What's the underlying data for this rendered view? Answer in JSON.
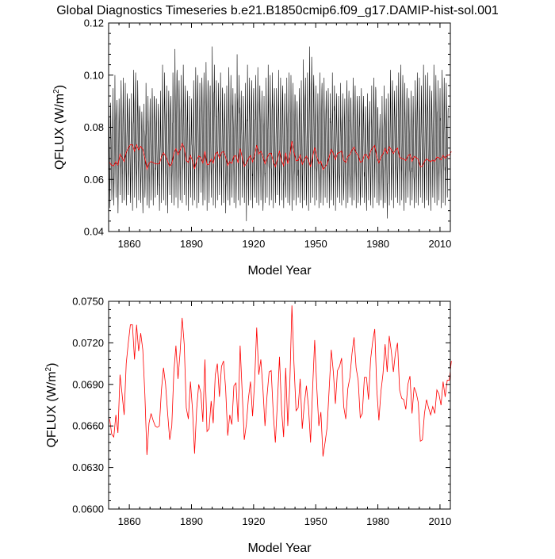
{
  "figure_title": "Global Diagnostics Timeseries b.e21.B1850cmip6.f09_g17.DAMIP-hist-sol.001",
  "colors": {
    "monthly": "#000000",
    "annual": "#ff0000",
    "axes": "#000000",
    "background": "#ffffff"
  },
  "chart_data": [
    {
      "type": "line",
      "title": "",
      "xlabel": "Model Year",
      "ylabel": "QFLUX (W/m²)",
      "ylabel_main": "QFLUX (W/m",
      "ylabel_sup": "2",
      "ylabel_close": ")",
      "xlim": [
        1850,
        2015
      ],
      "ylim": [
        0.04,
        0.12
      ],
      "xticks": [
        1860,
        1890,
        1920,
        1950,
        1980,
        2010
      ],
      "xtick_labels": [
        "1860",
        "1890",
        "1920",
        "1950",
        "1980",
        "2010"
      ],
      "yticks": [
        0.04,
        0.06,
        0.08,
        0.1,
        0.12
      ],
      "ytick_labels": [
        "0.04",
        "0.06",
        "0.08",
        "0.10",
        "0.12"
      ],
      "grid": false,
      "legend": "none",
      "series": [
        {
          "color": "#000000",
          "description_of_values": "monthly global mean, seasonal cycle approx. 0.050-0.102",
          "x_start": 1850.04,
          "x_step": 0.0833333,
          "values_annual_peaks": [
            0.094,
            0.087,
            0.095,
            0.1,
            0.088,
            0.091,
            0.098,
            0.099,
            0.097,
            0.093,
            0.091,
            0.093,
            0.102,
            0.101,
            0.098,
            0.087,
            0.086,
            0.089,
            0.097,
            0.092,
            0.091,
            0.095,
            0.092,
            0.091,
            0.089,
            0.094,
            0.104,
            0.101,
            0.096,
            0.094,
            0.092,
            0.101,
            0.11,
            0.102,
            0.098,
            0.1,
            0.104,
            0.096,
            0.094,
            0.092,
            0.091,
            0.098,
            0.103,
            0.1,
            0.097,
            0.099,
            0.101,
            0.105,
            0.098,
            0.096,
            0.111,
            0.104,
            0.098,
            0.097,
            0.101,
            0.094,
            0.093,
            0.096,
            0.103,
            0.1,
            0.095,
            0.093,
            0.108,
            0.1,
            0.094,
            0.092,
            0.097,
            0.104,
            0.099,
            0.098,
            0.095,
            0.1,
            0.103,
            0.096,
            0.094,
            0.092,
            0.099,
            0.104,
            0.1,
            0.101,
            0.095,
            0.095,
            0.102,
            0.099,
            0.096,
            0.093,
            0.099,
            0.101,
            0.1,
            0.097,
            0.092,
            0.09,
            0.095,
            0.098,
            0.106,
            0.099,
            0.101,
            0.111,
            0.107,
            0.1,
            0.096,
            0.093,
            0.101,
            0.097,
            0.099,
            0.094,
            0.095,
            0.093,
            0.101,
            0.096,
            0.093,
            0.092,
            0.097,
            0.093,
            0.091,
            0.098,
            0.094,
            0.09,
            0.099,
            0.096,
            0.092,
            0.092,
            0.095,
            0.092,
            0.088,
            0.093,
            0.09,
            0.096,
            0.099,
            0.094,
            0.087,
            0.085,
            0.092,
            0.096,
            0.091,
            0.093,
            0.102,
            0.098,
            0.094,
            0.096,
            0.101,
            0.104,
            0.1,
            0.097,
            0.095,
            0.091,
            0.094,
            0.092,
            0.098,
            0.101,
            0.099,
            0.096,
            0.104,
            0.1,
            0.101,
            0.096,
            0.094,
            0.104,
            0.1,
            0.098,
            0.095,
            0.102,
            0.099,
            0.097
          ],
          "values_annual_troughs": [
            0.049,
            0.052,
            0.05,
            0.053,
            0.047,
            0.054,
            0.051,
            0.052,
            0.05,
            0.054,
            0.051,
            0.048,
            0.053,
            0.049,
            0.052,
            0.051,
            0.047,
            0.053,
            0.05,
            0.049,
            0.052,
            0.05,
            0.053,
            0.054,
            0.048,
            0.051,
            0.052,
            0.05,
            0.047,
            0.054,
            0.051,
            0.05,
            0.053,
            0.049,
            0.052,
            0.051,
            0.054,
            0.05,
            0.048,
            0.053,
            0.05,
            0.052,
            0.049,
            0.051,
            0.055,
            0.05,
            0.052,
            0.048,
            0.051,
            0.053,
            0.05,
            0.049,
            0.052,
            0.054,
            0.05,
            0.051,
            0.047,
            0.052,
            0.05,
            0.053,
            0.051,
            0.049,
            0.052,
            0.05,
            0.053,
            0.051,
            0.044,
            0.05,
            0.052,
            0.049,
            0.053,
            0.051,
            0.05,
            0.052,
            0.048,
            0.051,
            0.053,
            0.05,
            0.052,
            0.049,
            0.051,
            0.054,
            0.05,
            0.052,
            0.049,
            0.053,
            0.051,
            0.05,
            0.048,
            0.052,
            0.05,
            0.053,
            0.051,
            0.049,
            0.052,
            0.05,
            0.048,
            0.051,
            0.053,
            0.05,
            0.052,
            0.049,
            0.051,
            0.05,
            0.053,
            0.051,
            0.049,
            0.052,
            0.05,
            0.048,
            0.053,
            0.051,
            0.05,
            0.052,
            0.049,
            0.051,
            0.053,
            0.05,
            0.052,
            0.049,
            0.051,
            0.05,
            0.053,
            0.051,
            0.048,
            0.052,
            0.05,
            0.049,
            0.053,
            0.051,
            0.05,
            0.052,
            0.049,
            0.051,
            0.045,
            0.05,
            0.052,
            0.049,
            0.053,
            0.051,
            0.05,
            0.052,
            0.048,
            0.051,
            0.053,
            0.05,
            0.052,
            0.049,
            0.051,
            0.05,
            0.053,
            0.051,
            0.049,
            0.052,
            0.05,
            0.048,
            0.053,
            0.051,
            0.05,
            0.052,
            0.049,
            0.051,
            0.05,
            0.053,
            0.051
          ]
        },
        {
          "color": "#ff0000",
          "description_of_values": "annual mean",
          "x_start": 1850.5,
          "x_step": 1,
          "values": [
            0.0665,
            0.0654,
            0.0652,
            0.0668,
            0.0655,
            0.0697,
            0.0683,
            0.0668,
            0.0705,
            0.072,
            0.0733,
            0.0733,
            0.0708,
            0.0733,
            0.0714,
            0.0727,
            0.0715,
            0.0683,
            0.0639,
            0.0662,
            0.0669,
            0.0664,
            0.066,
            0.0659,
            0.066,
            0.0686,
            0.0702,
            0.069,
            0.0669,
            0.065,
            0.066,
            0.0699,
            0.0718,
            0.0694,
            0.0713,
            0.0738,
            0.0719,
            0.0673,
            0.0665,
            0.0692,
            0.0672,
            0.064,
            0.0672,
            0.069,
            0.0684,
            0.0663,
            0.0708,
            0.0656,
            0.0658,
            0.0678,
            0.0662,
            0.0697,
            0.0705,
            0.0681,
            0.0703,
            0.0707,
            0.0687,
            0.0653,
            0.0668,
            0.0661,
            0.0689,
            0.0691,
            0.0663,
            0.0718,
            0.0684,
            0.065,
            0.0661,
            0.068,
            0.0692,
            0.0667,
            0.0692,
            0.0731,
            0.0697,
            0.0708,
            0.0687,
            0.066,
            0.0682,
            0.0699,
            0.07,
            0.0669,
            0.0648,
            0.0677,
            0.071,
            0.0672,
            0.0652,
            0.0702,
            0.066,
            0.0691,
            0.0747,
            0.0705,
            0.0671,
            0.0673,
            0.0694,
            0.0658,
            0.0676,
            0.0689,
            0.0674,
            0.0648,
            0.0687,
            0.0722,
            0.0688,
            0.066,
            0.067,
            0.0638,
            0.0648,
            0.0659,
            0.0687,
            0.0715,
            0.0699,
            0.0676,
            0.07,
            0.0703,
            0.0709,
            0.0674,
            0.0665,
            0.0687,
            0.0695,
            0.0712,
            0.0724,
            0.0702,
            0.0693,
            0.0666,
            0.0669,
            0.0695,
            0.0695,
            0.0679,
            0.0708,
            0.0721,
            0.073,
            0.0686,
            0.0664,
            0.0685,
            0.0698,
            0.0719,
            0.0699,
            0.0725,
            0.0714,
            0.0699,
            0.0713,
            0.072,
            0.0686,
            0.068,
            0.0679,
            0.0672,
            0.069,
            0.0696,
            0.0669,
            0.0688,
            0.0684,
            0.0677,
            0.0649,
            0.065,
            0.0669,
            0.0679,
            0.0673,
            0.0668,
            0.0674,
            0.0669,
            0.0686,
            0.0683,
            0.0675,
            0.0692,
            0.0681,
            0.0693,
            0.0693,
            0.0707
          ]
        }
      ]
    },
    {
      "type": "line",
      "title": "",
      "xlabel": "Model Year",
      "ylabel": "QFLUX (W/m²)",
      "ylabel_main": "QFLUX (W/m",
      "ylabel_sup": "2",
      "ylabel_close": ")",
      "xlim": [
        1850,
        2015
      ],
      "ylim": [
        0.06,
        0.075
      ],
      "xticks": [
        1860,
        1890,
        1920,
        1950,
        1980,
        2010
      ],
      "xtick_labels": [
        "1860",
        "1890",
        "1920",
        "1950",
        "1980",
        "2010"
      ],
      "yticks": [
        0.06,
        0.063,
        0.066,
        0.069,
        0.072,
        0.075
      ],
      "ytick_labels": [
        "0.0600",
        "0.0630",
        "0.0660",
        "0.0690",
        "0.0720",
        "0.0750"
      ],
      "grid": false,
      "legend": "none",
      "series": [
        {
          "color": "#ff0000",
          "description_of_values": "annual mean",
          "x_start": 1850.5,
          "x_step": 1,
          "values": [
            0.0665,
            0.0654,
            0.0652,
            0.0668,
            0.0655,
            0.0697,
            0.0683,
            0.0668,
            0.0705,
            0.072,
            0.0733,
            0.0733,
            0.0708,
            0.0733,
            0.0714,
            0.0727,
            0.0715,
            0.0683,
            0.0639,
            0.0662,
            0.0669,
            0.0664,
            0.066,
            0.0659,
            0.066,
            0.0686,
            0.0702,
            0.069,
            0.0669,
            0.065,
            0.066,
            0.0699,
            0.0718,
            0.0694,
            0.0713,
            0.0738,
            0.0719,
            0.0673,
            0.0665,
            0.0692,
            0.0672,
            0.064,
            0.0672,
            0.069,
            0.0684,
            0.0663,
            0.0708,
            0.0656,
            0.0658,
            0.0678,
            0.0662,
            0.0697,
            0.0705,
            0.0681,
            0.0703,
            0.0707,
            0.0687,
            0.0653,
            0.0668,
            0.0661,
            0.0689,
            0.0691,
            0.0663,
            0.0718,
            0.0684,
            0.065,
            0.0661,
            0.068,
            0.0692,
            0.0667,
            0.0692,
            0.0731,
            0.0697,
            0.0708,
            0.0687,
            0.066,
            0.0682,
            0.0699,
            0.07,
            0.0669,
            0.0648,
            0.0677,
            0.071,
            0.0672,
            0.0652,
            0.0702,
            0.066,
            0.0691,
            0.0747,
            0.0705,
            0.0671,
            0.0673,
            0.0694,
            0.0658,
            0.0676,
            0.0689,
            0.0674,
            0.0648,
            0.0687,
            0.0722,
            0.0688,
            0.066,
            0.067,
            0.0638,
            0.0648,
            0.0659,
            0.0687,
            0.0715,
            0.0699,
            0.0676,
            0.07,
            0.0703,
            0.0709,
            0.0674,
            0.0665,
            0.0687,
            0.0695,
            0.0712,
            0.0724,
            0.0702,
            0.0693,
            0.0666,
            0.0669,
            0.0695,
            0.0695,
            0.0679,
            0.0708,
            0.0721,
            0.073,
            0.0686,
            0.0664,
            0.0685,
            0.0698,
            0.0719,
            0.0699,
            0.0725,
            0.0714,
            0.0699,
            0.0713,
            0.072,
            0.0686,
            0.068,
            0.0679,
            0.0672,
            0.069,
            0.0696,
            0.0669,
            0.0688,
            0.0684,
            0.0677,
            0.0649,
            0.065,
            0.0669,
            0.0679,
            0.0673,
            0.0668,
            0.0674,
            0.0669,
            0.0686,
            0.0683,
            0.0675,
            0.0692,
            0.0681,
            0.0693,
            0.0693,
            0.0707
          ]
        }
      ]
    }
  ]
}
